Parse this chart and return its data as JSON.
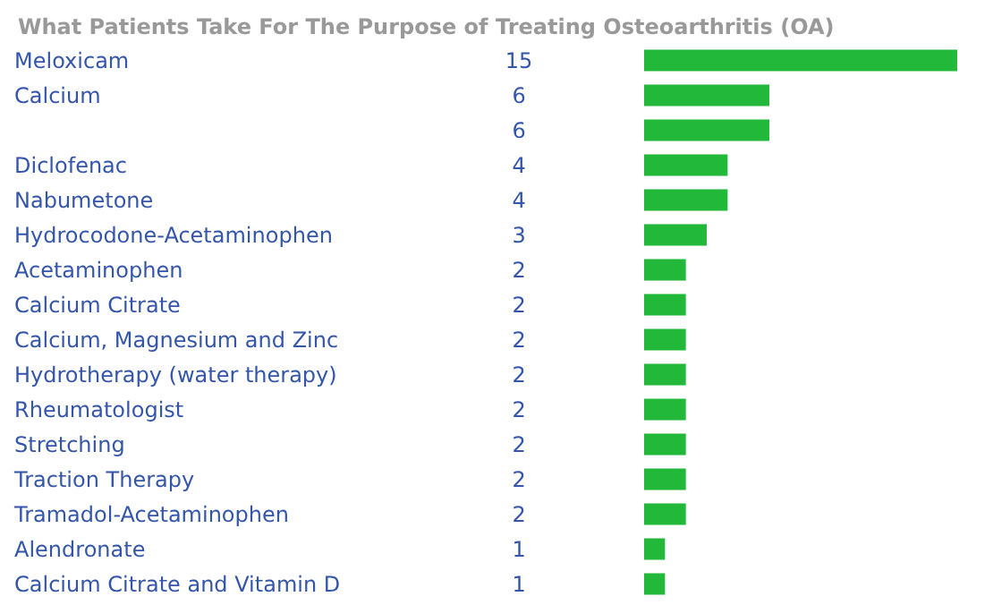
{
  "chart_data": {
    "type": "bar",
    "orientation": "horizontal",
    "title": "What Patients Take For The Purpose of Treating Osteoarthritis (OA)",
    "categories": [
      "Meloxicam",
      "Calcium",
      null,
      "Diclofenac",
      "Nabumetone",
      "Hydrocodone-Acetaminophen",
      "Acetaminophen",
      "Calcium Citrate",
      "Calcium, Magnesium and Zinc",
      "Hydrotherapy (water therapy)",
      "Rheumatologist",
      "Stretching",
      "Traction Therapy",
      "Tramadol-Acetaminophen",
      "Alendronate",
      "Calcium Citrate and Vitamin D"
    ],
    "values": [
      15,
      6,
      6,
      4,
      4,
      3,
      2,
      2,
      2,
      2,
      2,
      2,
      2,
      2,
      1,
      1
    ],
    "color": "#22b83a",
    "data_labels": true
  }
}
